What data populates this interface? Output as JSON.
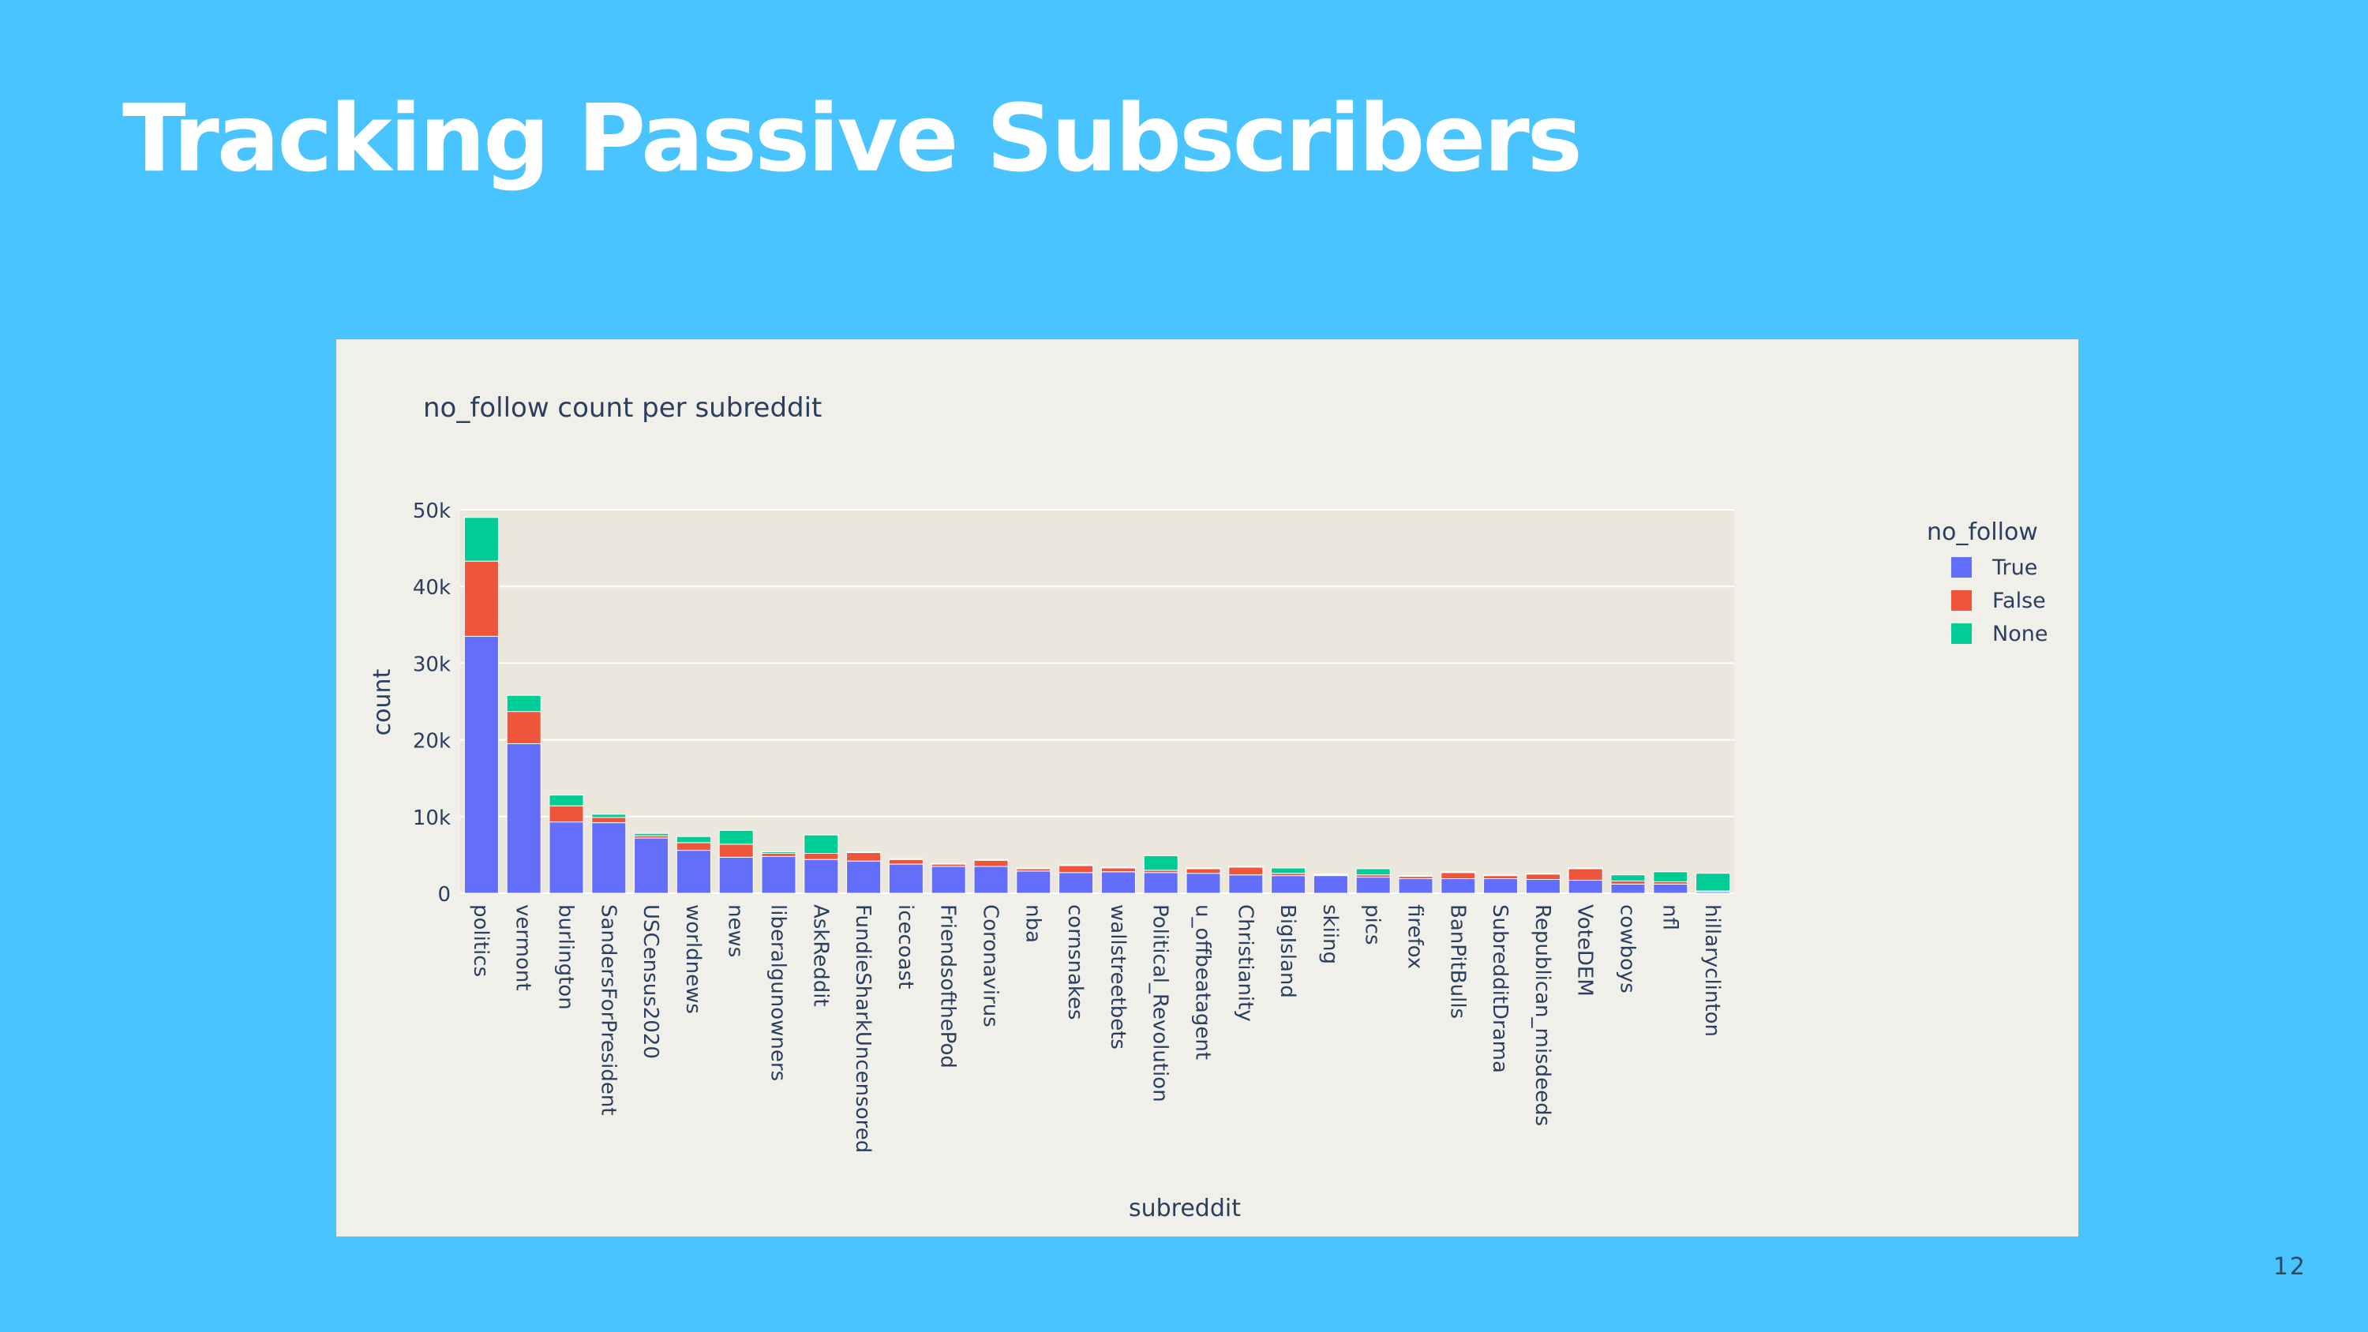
{
  "slide": {
    "title": "Tracking Passive Subscribers",
    "page_number": "12"
  },
  "chart_data": {
    "type": "bar",
    "stacked": true,
    "title": "no_follow count per subreddit",
    "xlabel": "subreddit",
    "ylabel": "count",
    "ylim": [
      0,
      50000
    ],
    "yticks": [
      0,
      10000,
      20000,
      30000,
      40000,
      50000
    ],
    "ytick_labels": [
      "0",
      "10k",
      "20k",
      "30k",
      "40k",
      "50k"
    ],
    "grid": true,
    "legend": {
      "title": "no_follow",
      "placement": "right"
    },
    "categories": [
      "politics",
      "vermont",
      "burlington",
      "SandersForPresident",
      "USCensus2020",
      "worldnews",
      "news",
      "liberalgunowners",
      "AskReddit",
      "FundieSharkUncensored",
      "icecoast",
      "FriendsofthePod",
      "Coronavirus",
      "nba",
      "cornsnakes",
      "wallstreetbets",
      "Political_Revolution",
      "u_offbeatagent",
      "Christianity",
      "BigIsland",
      "skiing",
      "pics",
      "firefox",
      "BanPitBulls",
      "SubredditDrama",
      "Republican_misdeeds",
      "VoteDEM",
      "cowboys",
      "nfl",
      "hillaryclinton"
    ],
    "series": [
      {
        "name": "True",
        "color": "#636efa",
        "values": [
          33500,
          19500,
          9300,
          9200,
          7200,
          5600,
          4700,
          4800,
          4400,
          4200,
          3800,
          3500,
          3500,
          2900,
          2700,
          2800,
          2700,
          2600,
          2400,
          2300,
          2300,
          2100,
          1900,
          1900,
          1900,
          1800,
          1700,
          1200,
          1200,
          200
        ]
      },
      {
        "name": "False",
        "color": "#ef553b",
        "values": [
          9800,
          4200,
          2100,
          700,
          300,
          1000,
          1700,
          400,
          800,
          1100,
          600,
          300,
          800,
          300,
          900,
          500,
          300,
          600,
          1000,
          300,
          100,
          300,
          300,
          800,
          400,
          700,
          1500,
          400,
          300,
          100
        ]
      },
      {
        "name": "None",
        "color": "#00cc96",
        "values": [
          5700,
          2100,
          1400,
          400,
          300,
          800,
          1800,
          200,
          2400,
          100,
          100,
          100,
          100,
          100,
          100,
          100,
          1900,
          100,
          100,
          700,
          100,
          800,
          100,
          100,
          100,
          100,
          100,
          800,
          1300,
          2300
        ]
      }
    ]
  }
}
